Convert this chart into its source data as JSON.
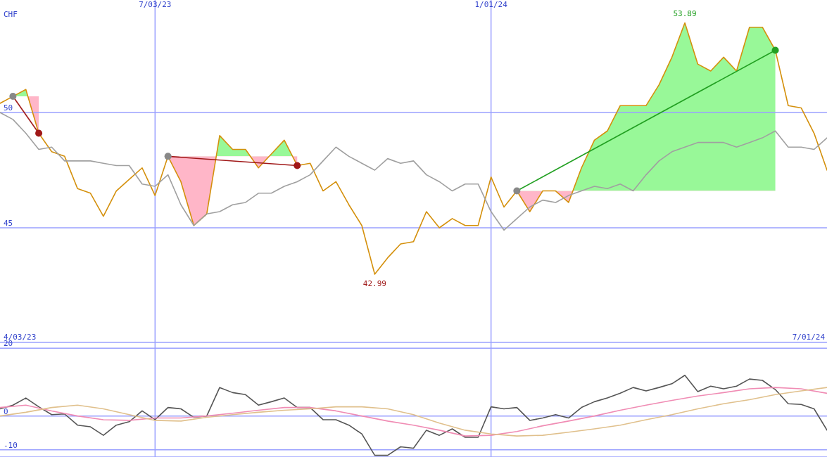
{
  "chart_data": [
    {
      "type": "line",
      "ylabel": "CHF",
      "x": [
        "2023-04-10",
        "2023-04-17",
        "2023-04-24",
        "2023-05-01",
        "2023-05-08",
        "2023-05-15",
        "2023-05-22",
        "2023-05-29",
        "2023-06-05",
        "2023-06-12",
        "2023-06-19",
        "2023-06-26",
        "2023-07-03",
        "2023-07-10",
        "2023-07-17",
        "2023-07-24",
        "2023-07-31",
        "2023-08-07",
        "2023-08-14",
        "2023-08-21",
        "2023-08-28",
        "2023-09-04",
        "2023-09-11",
        "2023-09-18",
        "2023-09-25",
        "2023-10-02",
        "2023-10-09",
        "2023-10-16",
        "2023-10-23",
        "2023-10-30",
        "2023-11-06",
        "2023-11-13",
        "2023-11-20",
        "2023-11-27",
        "2023-12-04",
        "2023-12-11",
        "2023-12-18",
        "2023-12-25",
        "2024-01-01",
        "2024-01-08",
        "2024-01-15",
        "2024-01-22",
        "2024-01-29",
        "2024-02-05",
        "2024-02-12",
        "2024-02-19",
        "2024-02-26",
        "2024-03-04",
        "2024-03-11",
        "2024-03-18",
        "2024-03-25",
        "2024-04-01",
        "2024-04-08",
        "2024-04-15",
        "2024-04-22",
        "2024-04-29",
        "2024-05-06",
        "2024-05-13",
        "2024-05-20",
        "2024-05-27",
        "2024-06-03",
        "2024-06-10",
        "2024-06-17",
        "2024-06-24",
        "2024-07-01"
      ],
      "series": [
        {
          "color": "#d4900c",
          "values": [
            50.4,
            50.7,
            51.0,
            49.1,
            48.3,
            48.1,
            46.7,
            46.5,
            45.5,
            46.6,
            47.1,
            47.6,
            46.4,
            48.1,
            47.0,
            45.1,
            45.6,
            49.0,
            48.4,
            48.4,
            47.6,
            48.2,
            48.8,
            47.7,
            47.8,
            46.6,
            47.0,
            46.0,
            45.1,
            42.99,
            43.7,
            44.3,
            44.4,
            45.7,
            45.0,
            45.4,
            45.1,
            45.1,
            47.2,
            45.9,
            46.6,
            45.7,
            46.6,
            46.6,
            46.1,
            47.6,
            48.8,
            49.2,
            50.3,
            50.3,
            50.3,
            51.2,
            52.4,
            53.89,
            52.1,
            51.8,
            52.4,
            51.8,
            53.7,
            53.7,
            52.7,
            50.3,
            50.2,
            49.1,
            47.5
          ]
        },
        {
          "color": "#a0a0a0",
          "values": [
            50.0,
            49.7,
            49.1,
            48.4,
            48.5,
            47.9,
            47.9,
            47.9,
            47.8,
            47.7,
            47.7,
            46.9,
            46.8,
            47.3,
            46.0,
            45.1,
            45.6,
            45.7,
            46.0,
            46.1,
            46.5,
            46.5,
            46.8,
            47.0,
            47.3,
            47.9,
            48.5,
            48.1,
            47.8,
            47.5,
            48.0,
            47.8,
            47.9,
            47.3,
            47.0,
            46.6,
            46.9,
            46.9,
            45.7,
            44.9,
            45.4,
            45.9,
            46.2,
            46.1,
            46.4,
            46.6,
            46.8,
            46.7,
            46.9,
            46.6,
            47.3,
            47.9,
            48.3,
            48.5,
            48.7,
            48.7,
            48.7,
            48.5,
            48.7,
            48.9,
            49.2,
            48.5,
            48.5,
            48.4,
            48.9
          ]
        },
        {
          "color": "#a01818",
          "marker": "circle",
          "x": [
            "2023-04-17",
            "2023-05-01"
          ],
          "values": [
            50.7,
            49.1
          ]
        },
        {
          "color": "#a01818",
          "marker": "circle",
          "x": [
            "2023-07-10",
            "2023-09-18"
          ],
          "values": [
            48.1,
            47.7
          ]
        },
        {
          "color": "#22a022",
          "marker": "circle",
          "x": [
            "2024-01-15",
            "2024-06-03"
          ],
          "values": [
            46.6,
            52.7
          ]
        }
      ],
      "xlim": [
        "2023-04-10",
        "2024-07-01"
      ],
      "xticks": [
        {
          "value": "2023-07-03",
          "label": "7/03/23"
        },
        {
          "value": "2024-01-01",
          "label": "1/01/24"
        }
      ],
      "ylim": [
        40.03,
        54.88
      ],
      "yticks": [
        45,
        50
      ],
      "grid": true,
      "annotations": [
        "4/03/23",
        "7/01/24",
        {
          "text": "53.89",
          "x": "2024-04-15",
          "y": 53.89
        },
        {
          "text": "42.99",
          "x": "2023-10-30",
          "y": 42.99
        }
      ]
    },
    {
      "type": "line",
      "x": [
        "2023-04-10",
        "2023-04-17",
        "2023-04-24",
        "2023-05-01",
        "2023-05-08",
        "2023-05-15",
        "2023-05-22",
        "2023-05-29",
        "2023-06-05",
        "2023-06-12",
        "2023-06-19",
        "2023-06-26",
        "2023-07-03",
        "2023-07-10",
        "2023-07-17",
        "2023-07-24",
        "2023-07-31",
        "2023-08-07",
        "2023-08-14",
        "2023-08-21",
        "2023-08-28",
        "2023-09-04",
        "2023-09-11",
        "2023-09-18",
        "2023-09-25",
        "2023-10-02",
        "2023-10-09",
        "2023-10-16",
        "2023-10-23",
        "2023-10-30",
        "2023-11-06",
        "2023-11-13",
        "2023-11-20",
        "2023-11-27",
        "2023-12-04",
        "2023-12-11",
        "2023-12-18",
        "2023-12-25",
        "2024-01-01",
        "2024-01-08",
        "2024-01-15",
        "2024-01-22",
        "2024-01-29",
        "2024-02-05",
        "2024-02-12",
        "2024-02-19",
        "2024-02-26",
        "2024-03-04",
        "2024-03-11",
        "2024-03-18",
        "2024-03-25",
        "2024-04-01",
        "2024-04-08",
        "2024-04-15",
        "2024-04-22",
        "2024-04-29",
        "2024-05-06",
        "2024-05-13",
        "2024-05-20",
        "2024-05-27",
        "2024-06-03",
        "2024-06-10",
        "2024-06-17",
        "2024-06-24",
        "2024-07-01"
      ],
      "series": [
        {
          "color": "#555555",
          "values": [
            2.1,
            3.2,
            5.3,
            2.7,
            0.4,
            0.6,
            -2.7,
            -3.2,
            -5.7,
            -2.7,
            -1.7,
            1.5,
            -1.1,
            2.5,
            2.1,
            -0.4,
            0,
            8.4,
            6.9,
            6.3,
            3.2,
            4.2,
            5.3,
            2.5,
            2.5,
            -1.1,
            -1.1,
            -2.7,
            -5.3,
            -11.6,
            -11.6,
            -9.1,
            -9.5,
            -4.2,
            -5.7,
            -3.8,
            -6.3,
            -6.3,
            2.7,
            2.1,
            2.5,
            -1.3,
            -0.6,
            0.4,
            -0.6,
            2.5,
            4.2,
            5.3,
            6.7,
            8.4,
            7.4,
            8.4,
            9.5,
            12.0,
            7.2,
            8.8,
            8.0,
            8.8,
            10.9,
            10.5,
            7.8,
            3.6,
            3.4,
            2.1,
            -4.2
          ]
        },
        {
          "color": "#f08cb4",
          "x": [
            "2023-04-10",
            "2023-04-24",
            "2023-05-08",
            "2023-05-22",
            "2023-06-05",
            "2023-06-19",
            "2023-07-03",
            "2023-07-17",
            "2023-07-31",
            "2023-08-14",
            "2023-08-28",
            "2023-09-11",
            "2023-09-25",
            "2023-10-09",
            "2023-10-23",
            "2023-11-06",
            "2023-11-20",
            "2023-12-04",
            "2023-12-18",
            "2024-01-01",
            "2024-01-15",
            "2024-01-29",
            "2024-02-12",
            "2024-02-26",
            "2024-03-11",
            "2024-03-25",
            "2024-04-08",
            "2024-04-22",
            "2024-05-06",
            "2024-05-20",
            "2024-06-03",
            "2024-06-17",
            "2024-07-01"
          ],
          "values": [
            2.5,
            3.2,
            1.5,
            0,
            -1.1,
            -1.3,
            -0.6,
            -0.6,
            0,
            0.8,
            1.7,
            2.5,
            2.5,
            1.5,
            0,
            -1.5,
            -2.7,
            -4.2,
            -5.9,
            -5.7,
            -4.6,
            -2.9,
            -1.5,
            0,
            1.7,
            3.2,
            4.6,
            5.9,
            6.9,
            8.0,
            8.4,
            8.0,
            6.7
          ]
        },
        {
          "color": "#e0c08c",
          "x": [
            "2023-04-10",
            "2023-04-24",
            "2023-05-08",
            "2023-05-22",
            "2023-06-05",
            "2023-06-19",
            "2023-07-03",
            "2023-07-17",
            "2023-07-31",
            "2023-08-14",
            "2023-08-28",
            "2023-09-11",
            "2023-09-25",
            "2023-10-09",
            "2023-10-23",
            "2023-11-06",
            "2023-11-20",
            "2023-12-04",
            "2023-12-18",
            "2024-01-01",
            "2024-01-15",
            "2024-01-29",
            "2024-02-12",
            "2024-02-26",
            "2024-03-11",
            "2024-03-25",
            "2024-04-08",
            "2024-04-22",
            "2024-05-06",
            "2024-05-20",
            "2024-06-03",
            "2024-06-17",
            "2024-07-01"
          ],
          "values": [
            0,
            1.1,
            2.5,
            3.2,
            2.1,
            0.4,
            -1.3,
            -1.5,
            -0.4,
            0.4,
            1.1,
            1.7,
            2.1,
            2.7,
            2.7,
            2.1,
            0.4,
            -2.1,
            -4.2,
            -5.3,
            -5.9,
            -5.7,
            -4.8,
            -3.8,
            -2.7,
            -1.1,
            0.4,
            2.1,
            3.6,
            4.8,
            6.3,
            7.4,
            8.4
          ]
        }
      ],
      "xlim": [
        "2023-04-10",
        "2024-07-01"
      ],
      "xticks": [
        {
          "value": "2023-07-03",
          "label": null
        },
        {
          "value": "2024-01-01",
          "label": null
        }
      ],
      "tick_labels": "y",
      "ylim": [
        -12.1,
        21.7
      ],
      "yticks": [
        -10,
        0,
        20
      ],
      "grid": true
    }
  ]
}
